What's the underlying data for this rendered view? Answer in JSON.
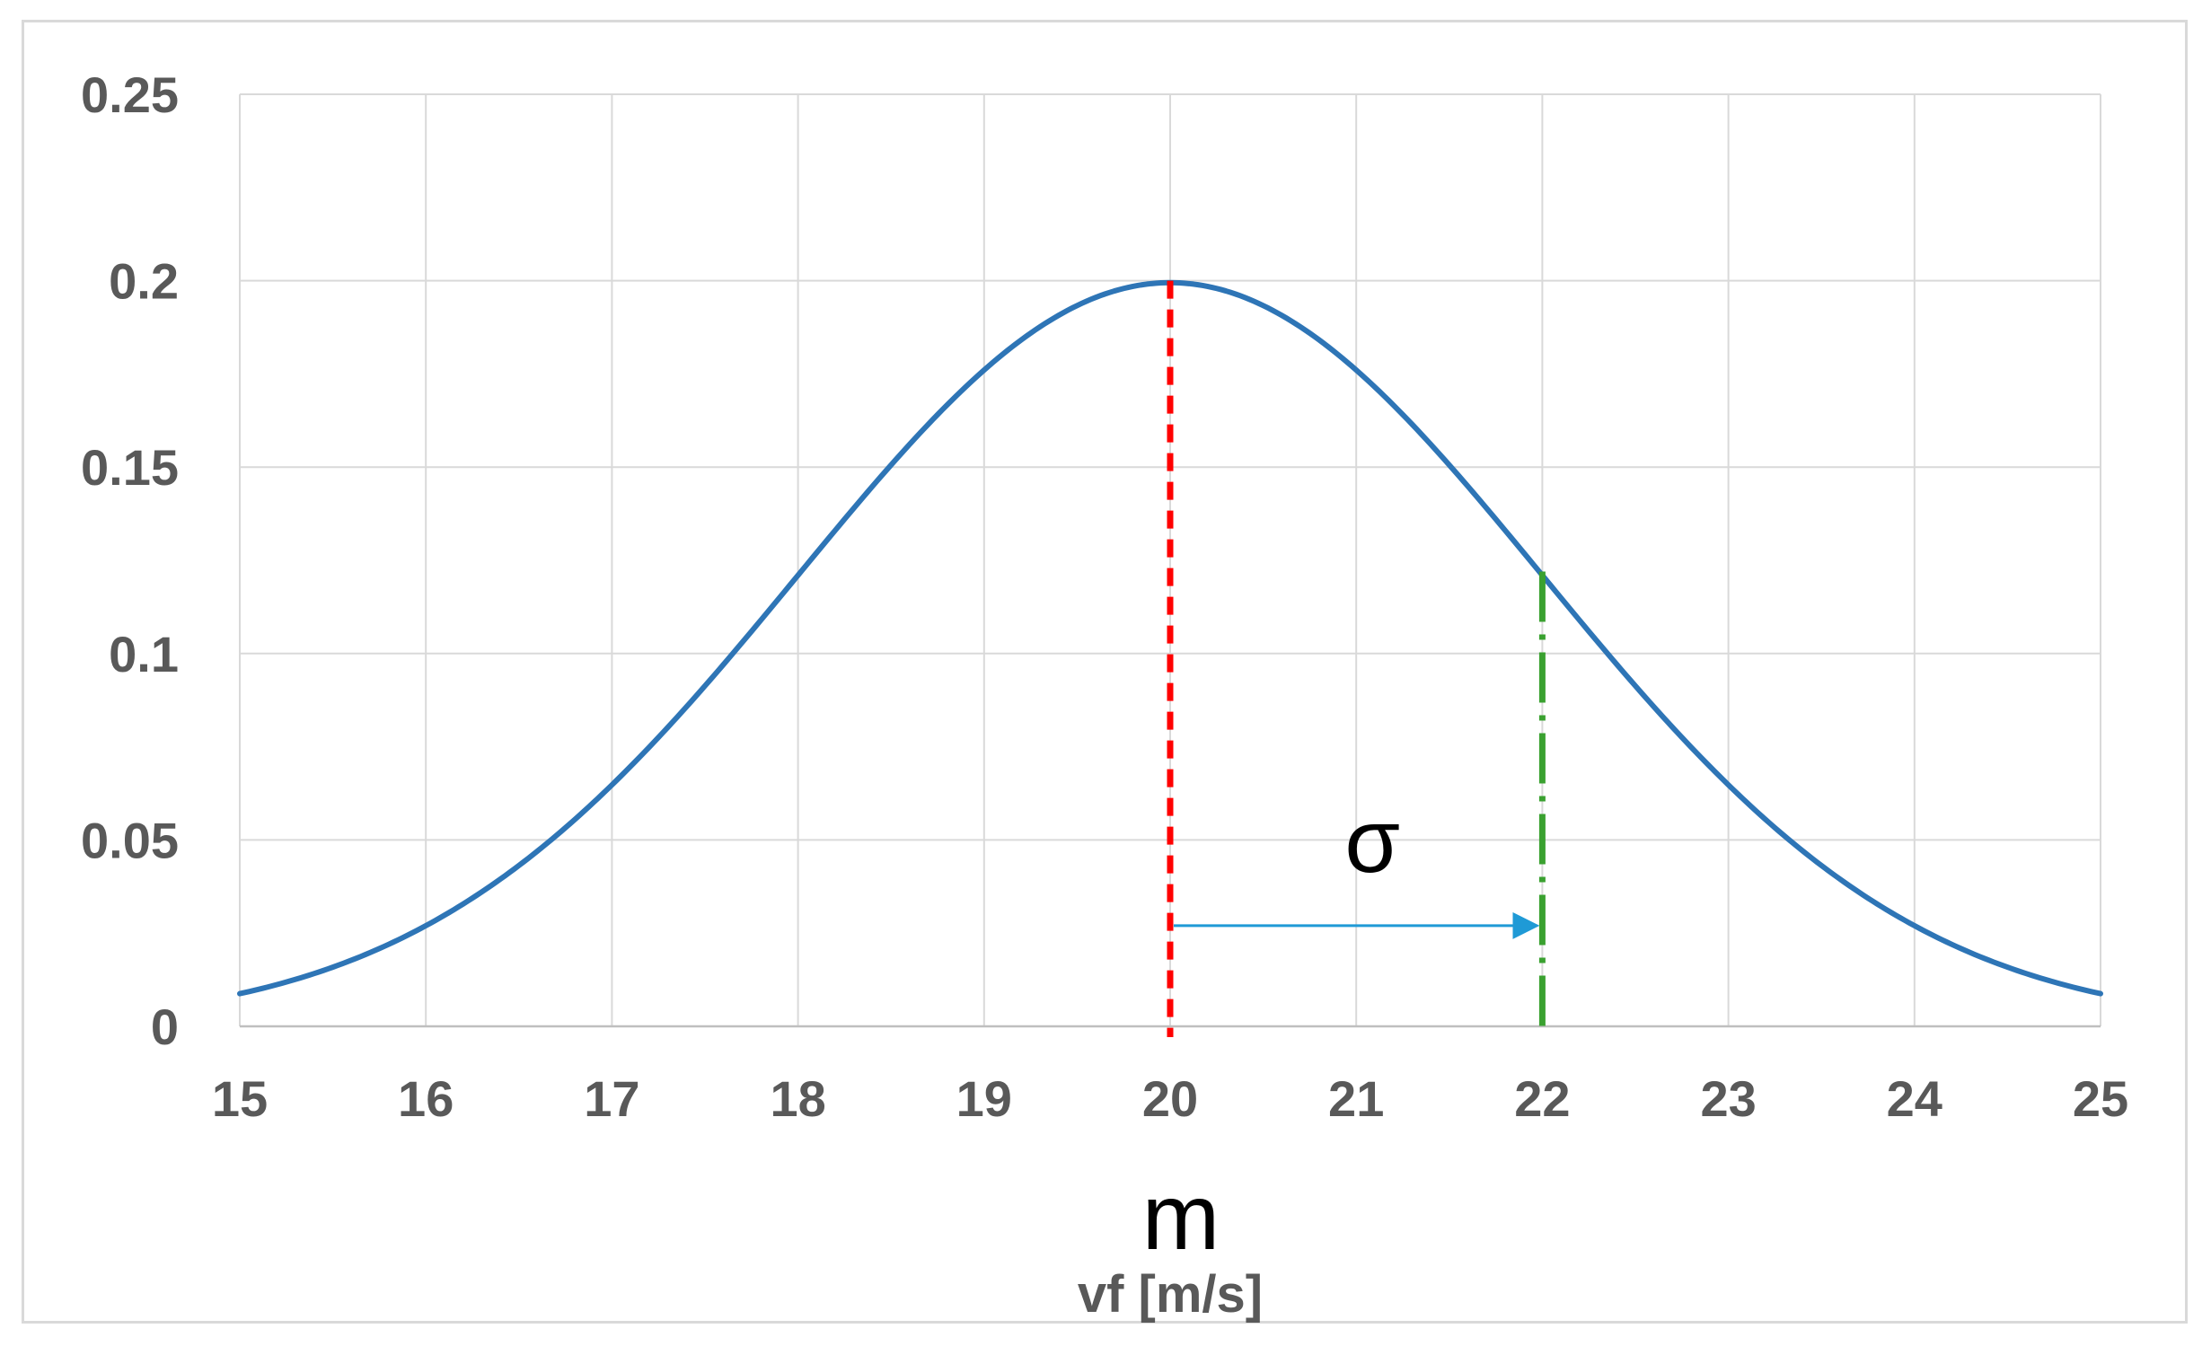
{
  "chart_data": {
    "type": "line",
    "title": "",
    "xlabel": "vf [m/s]",
    "ylabel": "",
    "xlim": [
      15,
      25
    ],
    "ylim": [
      0,
      0.25
    ],
    "x_ticks": [
      15,
      16,
      17,
      18,
      19,
      20,
      21,
      22,
      23,
      24,
      25
    ],
    "y_ticks": [
      0,
      0.05,
      0.1,
      0.15,
      0.2,
      0.25
    ],
    "y_tick_labels": [
      "0",
      "0.05",
      "0.1",
      "0.15",
      "0.2",
      "0.25"
    ],
    "grid": true,
    "legend": "none",
    "series": [
      {
        "x": [
          15,
          15.5,
          16,
          16.5,
          17,
          17.5,
          18,
          18.5,
          19,
          19.5,
          20,
          20.5,
          21,
          21.5,
          22,
          22.5,
          23,
          23.5,
          24,
          24.5,
          25
        ],
        "y": [
          0.0088,
          0.0164,
          0.027,
          0.0431,
          0.0648,
          0.0913,
          0.121,
          0.1506,
          0.176,
          0.1938,
          0.2,
          0.1938,
          0.176,
          0.1506,
          0.121,
          0.0913,
          0.0648,
          0.0431,
          0.027,
          0.0164,
          0.0088
        ],
        "color": "#2e75b6"
      }
    ],
    "annotations": {
      "mean": {
        "x": 20,
        "y_top": 0.2,
        "label": "m",
        "color": "#ff0000"
      },
      "sigma": {
        "x": 22,
        "y_top": 0.122,
        "label": "σ",
        "color": "#3aa130"
      },
      "arrow": {
        "from_x": 20,
        "to_x": 22,
        "y": 0.027,
        "color": "#1f9ad6"
      }
    }
  }
}
